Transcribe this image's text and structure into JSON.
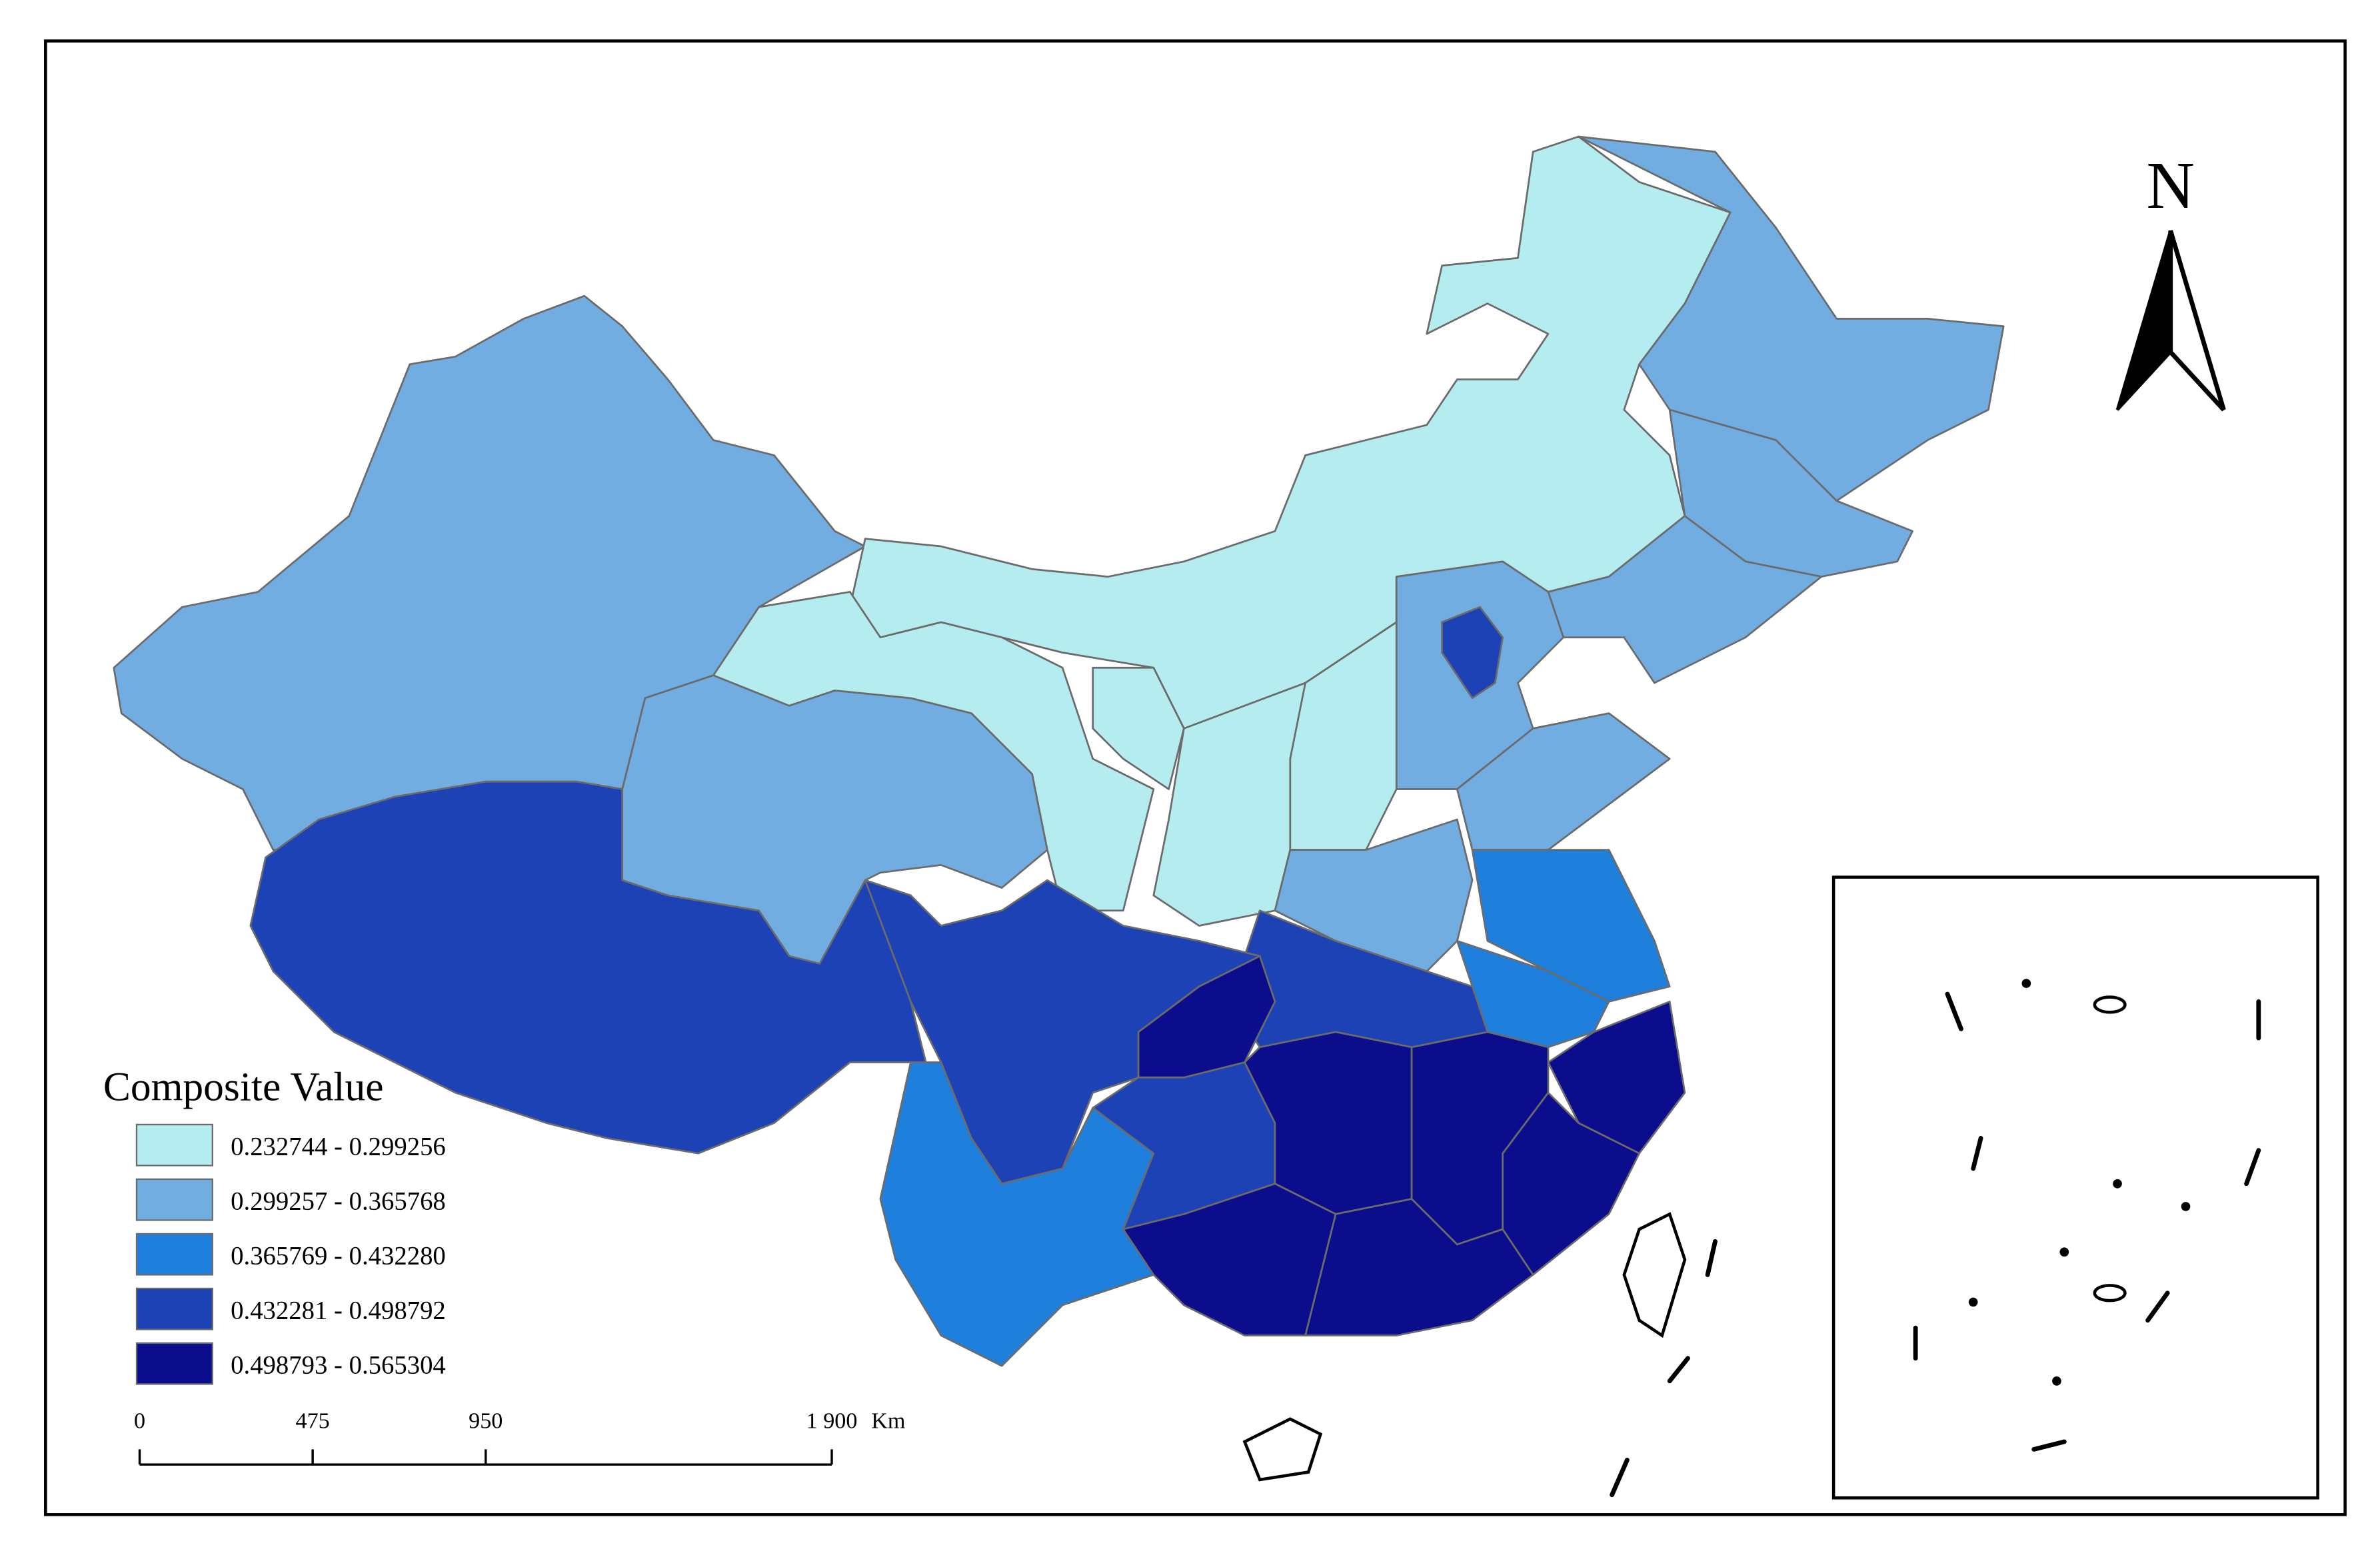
{
  "legend": {
    "title": "Composite Value",
    "items": [
      {
        "label": "0.232744 - 0.299256",
        "color": "#b4ecef"
      },
      {
        "label": "0.299257 - 0.365768",
        "color": "#72ade2"
      },
      {
        "label": "0.365769 - 0.432280",
        "color": "#1e80dc"
      },
      {
        "label": "0.432281 - 0.498792",
        "color": "#1d42b5"
      },
      {
        "label": "0.498793 - 0.565304",
        "color": "#0b0d8c"
      }
    ]
  },
  "north_arrow": {
    "label": "N"
  },
  "scale_bar": {
    "ticks": [
      {
        "value": 0,
        "label": "0"
      },
      {
        "value": 475,
        "label": "475"
      },
      {
        "value": 950,
        "label": "950"
      },
      {
        "value": 1900,
        "label": "1 900"
      }
    ],
    "unit": "Km"
  }
}
